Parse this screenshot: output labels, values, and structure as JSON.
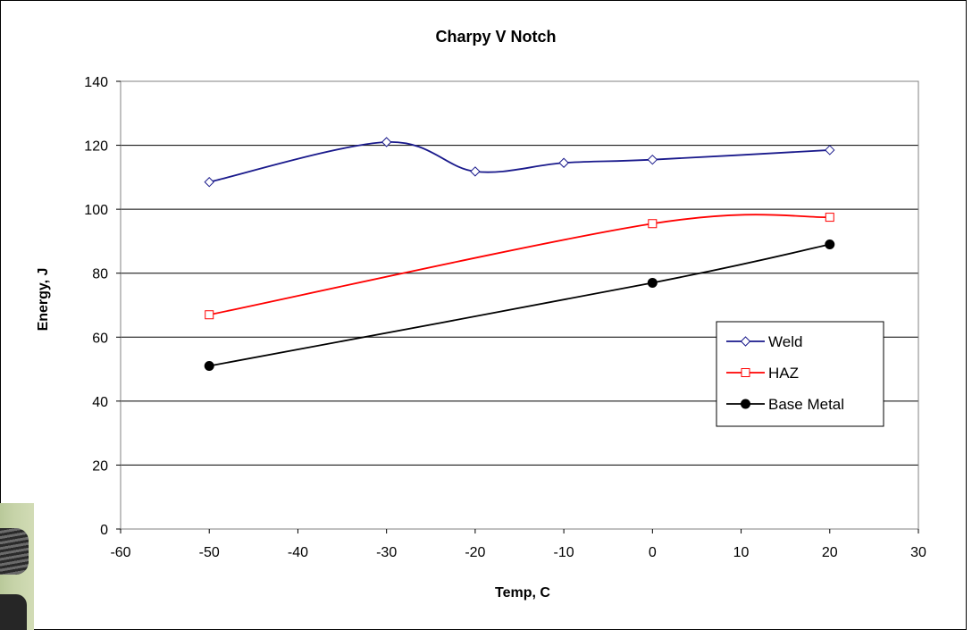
{
  "chart_data": {
    "type": "line",
    "title": "Charpy V Notch",
    "xlabel": "Temp, C",
    "ylabel": "Energy, J",
    "xlim": [
      -60,
      30
    ],
    "ylim": [
      0,
      140
    ],
    "x_ticks": [
      "-60",
      "-50",
      "-40",
      "-30",
      "-20",
      "-10",
      "0",
      "10",
      "20",
      "30"
    ],
    "y_ticks": [
      "0",
      "20",
      "40",
      "60",
      "80",
      "100",
      "120",
      "140"
    ],
    "grid": "horizontal",
    "legend_position": "right",
    "series": [
      {
        "name": "Weld",
        "color": "#1a1a8c",
        "marker": "diamond",
        "points": [
          [
            -50,
            108.5
          ],
          [
            -30,
            121
          ],
          [
            -20,
            111.8
          ],
          [
            -10,
            114.5
          ],
          [
            0,
            115.5
          ],
          [
            20,
            118.5
          ]
        ]
      },
      {
        "name": "HAZ",
        "color": "#ff0000",
        "marker": "square",
        "points": [
          [
            -50,
            67
          ],
          [
            0,
            95.5
          ],
          [
            20,
            97.5
          ]
        ]
      },
      {
        "name": "Base Metal",
        "color": "#000000",
        "marker": "circle",
        "points": [
          [
            -50,
            51
          ],
          [
            0,
            77
          ],
          [
            20,
            89
          ]
        ]
      }
    ]
  }
}
